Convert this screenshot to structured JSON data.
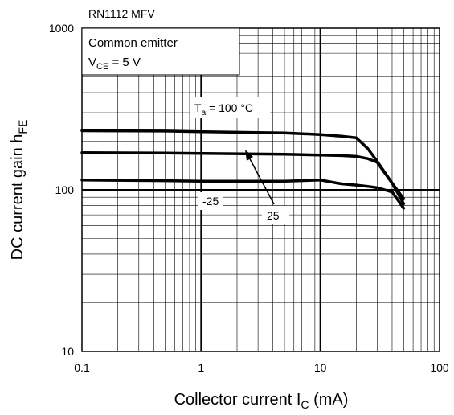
{
  "chart_data": {
    "type": "line",
    "title": "RN1112 MFV",
    "xlabel": {
      "main": "Collector current  I",
      "sub": "C",
      "tail": "  (mA)"
    },
    "ylabel": {
      "main": "DC current gain  h",
      "sub": "FE"
    },
    "x_scale": "log",
    "y_scale": "log",
    "xlim": [
      0.1,
      100
    ],
    "ylim": [
      10,
      1000
    ],
    "x_ticks": [
      "0.1",
      "1",
      "10",
      "100"
    ],
    "y_ticks": [
      "10",
      "100",
      "1000"
    ],
    "grid": true,
    "conditions": {
      "line1": "Common emitter",
      "line2": {
        "main": "V",
        "sub": "CE",
        "tail": " = 5 V"
      }
    },
    "series": [
      {
        "name": "T_a = 100 °C",
        "label": {
          "main": "T",
          "sub": "a",
          "tail": " = 100 °C"
        },
        "x": [
          0.1,
          0.5,
          1,
          5,
          10,
          15,
          20,
          25,
          30,
          40,
          50
        ],
        "y": [
          232,
          231,
          229,
          225,
          220,
          215,
          210,
          180,
          150,
          110,
          88
        ]
      },
      {
        "name": "25",
        "label": {
          "main": "25"
        },
        "x": [
          0.1,
          0.5,
          1,
          5,
          10,
          15,
          20,
          25,
          30,
          40,
          50
        ],
        "y": [
          170,
          169,
          168,
          166,
          164,
          163,
          161,
          156,
          148,
          110,
          82
        ]
      },
      {
        "name": "-25",
        "label": {
          "main": "-25"
        },
        "x": [
          0.1,
          0.5,
          1,
          5,
          10,
          15,
          20,
          25,
          30,
          40,
          50
        ],
        "y": [
          115,
          114,
          113,
          113,
          115,
          109,
          107,
          105,
          103,
          97,
          77
        ]
      }
    ]
  }
}
